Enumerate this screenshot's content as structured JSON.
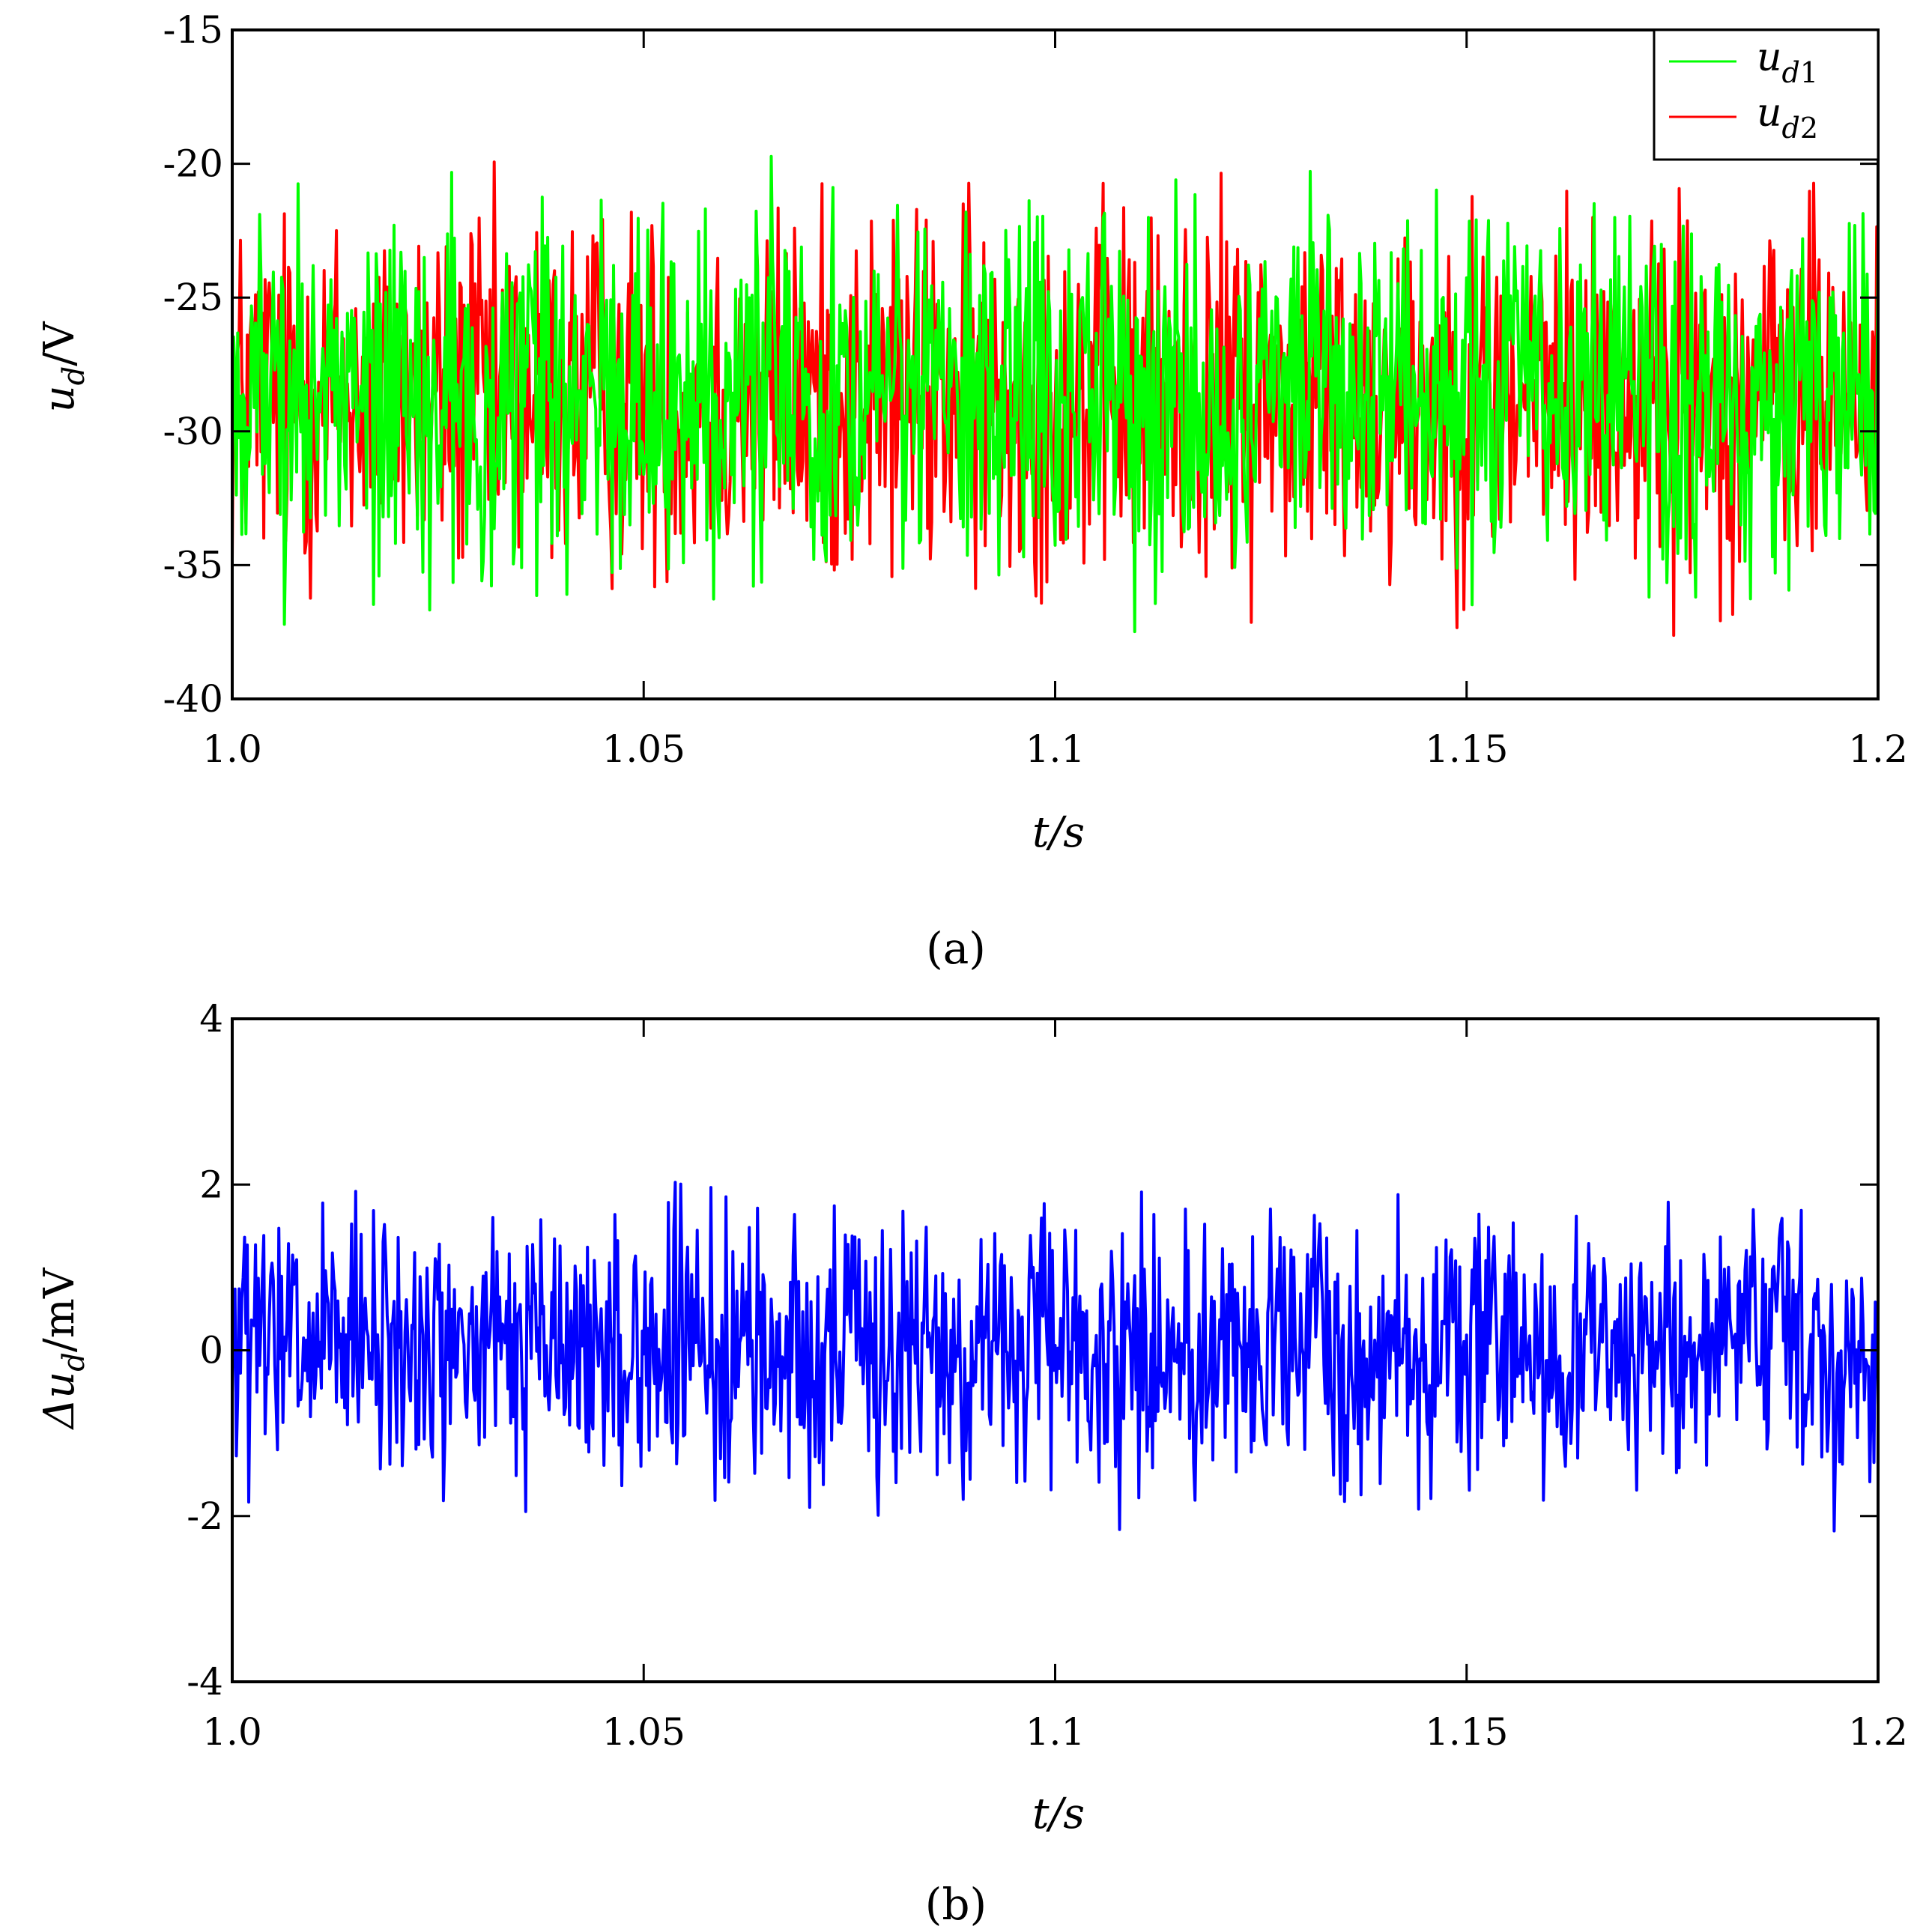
{
  "figure": {
    "panel_a_label": "(a)",
    "panel_b_label": "(b)"
  },
  "chart_data": [
    {
      "type": "line",
      "panel": "(a)",
      "xlabel": "t/s",
      "ylabel": "u_d/V",
      "xlim": [
        1.0,
        1.2
      ],
      "ylim": [
        -40,
        -15
      ],
      "xticks": [
        1.0,
        1.05,
        1.1,
        1.15,
        1.2
      ],
      "xtick_labels": [
        "1.0",
        "1.05",
        "1.1",
        "1.15",
        "1.2"
      ],
      "yticks": [
        -15,
        -20,
        -25,
        -30,
        -35,
        -40
      ],
      "ytick_labels": [
        "-15",
        "-20",
        "-25",
        "-30",
        "-35",
        "-40"
      ],
      "grid": false,
      "legend_position": "top-right",
      "series": [
        {
          "name": "u_d1",
          "color": "#00ff00",
          "mean": -28.6,
          "min": -38.7,
          "max": -18.9,
          "samples": 1200,
          "signal": "noisy ripple around the mean"
        },
        {
          "name": "u_d2",
          "color": "#ff0000",
          "mean": -28.6,
          "min": -38.7,
          "max": -18.9,
          "samples": 1200,
          "signal": "overlaps u_d1, hidden beneath green trace"
        }
      ]
    },
    {
      "type": "line",
      "panel": "(b)",
      "xlabel": "t/s",
      "ylabel": "Δu_d/mV",
      "xlim": [
        1.0,
        1.2
      ],
      "ylim": [
        -4,
        4
      ],
      "xticks": [
        1.0,
        1.05,
        1.1,
        1.15,
        1.2
      ],
      "xtick_labels": [
        "1.0",
        "1.05",
        "1.1",
        "1.15",
        "1.2"
      ],
      "yticks": [
        4,
        2,
        0,
        -2,
        -4
      ],
      "ytick_labels": [
        "4",
        "2",
        "0",
        "-2",
        "-4"
      ],
      "grid": false,
      "series": [
        {
          "name": "",
          "color": "#0000ff",
          "mean": 0.0,
          "min": -2.3,
          "max": 2.4,
          "samples": 1200,
          "signal": "noisy ripple around zero"
        }
      ]
    }
  ]
}
